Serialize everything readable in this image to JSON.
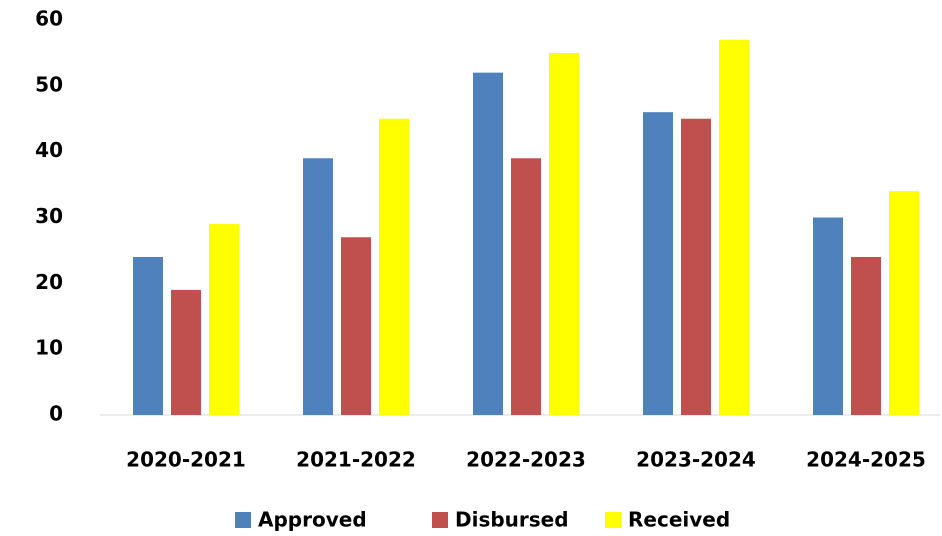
{
  "chart_data": {
    "type": "bar",
    "categories": [
      "2020-2021",
      "2021-2022",
      "2022-2023",
      "2023-2024",
      "2024-2025"
    ],
    "series": [
      {
        "name": "Approved",
        "color": "#4f81bd",
        "values": [
          24,
          39,
          52,
          46,
          30
        ]
      },
      {
        "name": "Disbursed",
        "color": "#c0504d",
        "values": [
          19,
          27,
          39,
          45,
          24
        ]
      },
      {
        "name": "Received",
        "color": "#ffff00",
        "values": [
          29,
          45,
          55,
          57,
          34
        ]
      }
    ],
    "ylim": [
      0,
      60
    ],
    "yticks": [
      0,
      10,
      20,
      30,
      40,
      50,
      60
    ],
    "grid": false,
    "legend": "bottom"
  }
}
